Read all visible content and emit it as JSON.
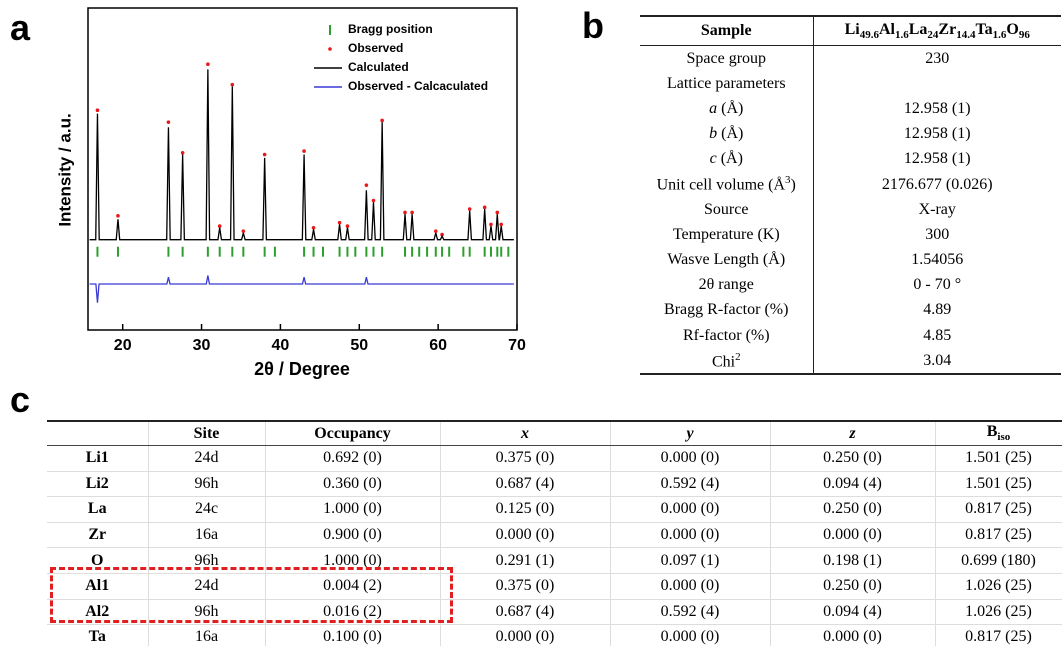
{
  "panel_labels": [
    "a",
    "b",
    "c"
  ],
  "chart_data": {
    "type": "line",
    "xlabel": "2θ / Degree",
    "ylabel": "Intensity / a.u.",
    "xlim": [
      15.6,
      70
    ],
    "ylim": [
      -53,
      136
    ],
    "xticks": [
      20,
      30,
      40,
      50,
      60,
      70
    ],
    "legend": "upper right",
    "series": [
      {
        "name": "Bragg position",
        "mark": "tick",
        "color": "#2ca02c",
        "x": [
          16.8,
          19.4,
          25.8,
          27.6,
          30.8,
          32.3,
          33.9,
          35.3,
          38.0,
          39.3,
          43.0,
          44.2,
          45.4,
          47.5,
          48.5,
          49.5,
          50.9,
          51.8,
          52.9,
          55.8,
          56.7,
          57.6,
          58.6,
          59.7,
          60.5,
          61.4,
          63.2,
          64.0,
          65.9,
          66.7,
          67.5,
          68.0,
          68.9
        ]
      },
      {
        "name": "Observed",
        "mark": "dot",
        "color": "#e8191b",
        "x": [
          16.8,
          19.4,
          25.8,
          27.6,
          30.8,
          32.3,
          33.9,
          35.3,
          38.0,
          43.0,
          44.2,
          47.5,
          48.5,
          50.9,
          51.8,
          52.9,
          55.8,
          56.7,
          59.7,
          60.5,
          64.0,
          65.9,
          66.7,
          67.5,
          68.0
        ],
        "values": [
          76,
          14,
          69,
          51,
          103,
          8,
          91,
          5,
          50,
          52,
          7,
          10,
          8,
          32,
          23,
          70,
          16,
          16,
          5,
          3,
          18,
          19,
          9,
          16,
          9
        ]
      },
      {
        "name": "Calculated",
        "mark": "line",
        "color": "#000000",
        "x": [
          15.8,
          16.58,
          16.8,
          17.02,
          19.18,
          19.4,
          19.62,
          25.58,
          25.8,
          26.02,
          27.38,
          27.6,
          27.82,
          30.58,
          30.8,
          31.02,
          32.08,
          32.3,
          32.52,
          33.68,
          33.9,
          34.12,
          35.08,
          35.3,
          35.52,
          37.78,
          38.0,
          38.22,
          42.78,
          43.0,
          43.22,
          43.98,
          44.2,
          44.42,
          47.28,
          47.5,
          47.72,
          48.28,
          48.5,
          48.72,
          50.68,
          50.9,
          51.12,
          51.58,
          51.8,
          52.02,
          52.68,
          52.9,
          53.12,
          55.58,
          55.8,
          56.02,
          56.48,
          56.7,
          56.92,
          59.48,
          59.7,
          59.92,
          60.28,
          60.5,
          60.72,
          63.78,
          64.0,
          64.22,
          65.68,
          65.9,
          66.12,
          66.48,
          66.7,
          66.92,
          67.28,
          67.5,
          67.72,
          67.78,
          68.0,
          68.22,
          69.6
        ],
        "values": [
          0,
          0,
          74,
          0,
          0,
          12,
          0,
          0,
          66,
          0,
          0,
          50,
          0,
          0,
          100,
          0,
          0,
          7,
          0,
          0,
          90,
          0,
          0,
          4,
          0,
          0,
          48,
          0,
          0,
          50,
          0,
          0,
          6,
          0,
          0,
          9,
          0,
          0,
          7,
          0,
          0,
          29,
          0,
          0,
          22,
          0,
          0,
          69,
          0,
          0,
          15,
          0,
          0,
          15,
          0,
          0,
          4,
          0,
          0,
          2,
          0,
          0,
          17,
          0,
          0,
          18,
          0,
          0,
          8,
          0,
          0,
          15,
          0,
          0,
          8,
          0,
          0
        ]
      },
      {
        "name": "Observed - Calcaculated",
        "mark": "line",
        "color": "#3a3ad6",
        "x": [
          15.8,
          16.6,
          16.8,
          17.0,
          25.6,
          25.8,
          26.0,
          30.6,
          30.8,
          31.0,
          42.8,
          43.0,
          43.2,
          50.7,
          50.9,
          51.1,
          69.6
        ],
        "values": [
          -26,
          -26,
          -37,
          -26,
          -26,
          -22,
          -26,
          -26,
          -21,
          -26,
          -26,
          -22,
          -26,
          -26,
          -22,
          -26,
          -26
        ]
      }
    ]
  },
  "table_b": {
    "header": [
      "Sample",
      [
        {
          "text": "Li"
        },
        {
          "text": "49.6",
          "style": "sub"
        },
        {
          "text": "Al"
        },
        {
          "text": "1.6",
          "style": "sub"
        },
        {
          "text": "La"
        },
        {
          "text": "24",
          "style": "sub"
        },
        {
          "text": "Zr"
        },
        {
          "text": "14.4",
          "style": "sub"
        },
        {
          "text": "Ta"
        },
        {
          "text": "1.6",
          "style": "sub"
        },
        {
          "text": "O"
        },
        {
          "text": "96",
          "style": "sub"
        }
      ]
    ],
    "rows": [
      [
        "Space group",
        "230"
      ],
      [
        "Lattice parameters",
        null
      ],
      [
        [
          {
            "text": "a",
            "style": "italic"
          },
          {
            "text": " (Å)"
          }
        ],
        "12.958 (1)"
      ],
      [
        [
          {
            "text": "b",
            "style": "italic"
          },
          {
            "text": " (Å)"
          }
        ],
        "12.958 (1)"
      ],
      [
        [
          {
            "text": "c",
            "style": "italic"
          },
          {
            "text": " (Å)"
          }
        ],
        "12.958 (1)"
      ],
      [
        [
          {
            "text": "Unit cell volume (Å"
          },
          {
            "text": "3",
            "style": "sup"
          },
          {
            "text": ")"
          }
        ],
        "2176.677 (0.026)"
      ],
      [
        "Source",
        "X-ray"
      ],
      [
        "Temperature (K)",
        "300"
      ],
      [
        "Wasve Length (Å)",
        "1.54056"
      ],
      [
        "2θ range",
        "0 - 70 °"
      ],
      [
        "Bragg R-factor (%)",
        "4.89"
      ],
      [
        "Rf-factor (%)",
        "4.85"
      ],
      [
        [
          {
            "text": "Chi"
          },
          {
            "text": "2",
            "style": "sup"
          }
        ],
        "3.04"
      ]
    ]
  },
  "table_c": {
    "header": [
      null,
      "Site",
      "Occupancy",
      [
        {
          "text": "x",
          "style": "italic"
        }
      ],
      [
        {
          "text": "y",
          "style": "italic"
        }
      ],
      [
        {
          "text": "z",
          "style": "italic"
        }
      ],
      [
        {
          "text": "B"
        },
        {
          "text": "iso",
          "style": "sub"
        }
      ]
    ],
    "rows": [
      [
        "Li1",
        "24d",
        "0.692 (0)",
        "0.375 (0)",
        "0.000 (0)",
        "0.250 (0)",
        "1.501 (25)"
      ],
      [
        "Li2",
        "96h",
        "0.360 (0)",
        "0.687 (4)",
        "0.592 (4)",
        "0.094 (4)",
        "1.501 (25)"
      ],
      [
        "La",
        "24c",
        "1.000 (0)",
        "0.125 (0)",
        "0.000 (0)",
        "0.250 (0)",
        "0.817 (25)"
      ],
      [
        "Zr",
        "16a",
        "0.900 (0)",
        "0.000 (0)",
        "0.000 (0)",
        "0.000 (0)",
        "0.817 (25)"
      ],
      [
        "O",
        "96h",
        "1.000 (0)",
        "0.291 (1)",
        "0.097 (1)",
        "0.198 (1)",
        "0.699 (180)"
      ],
      [
        "Al1",
        "24d",
        "0.004 (2)",
        "0.375 (0)",
        "0.000 (0)",
        "0.250 (0)",
        "1.026 (25)"
      ],
      [
        "Al2",
        "96h",
        "0.016 (2)",
        "0.687 (4)",
        "0.592 (4)",
        "0.094 (4)",
        "1.026 (25)"
      ],
      [
        "Ta",
        "16a",
        "0.100 (0)",
        "0.000 (0)",
        "0.000 (0)",
        "0.000 (0)",
        "0.817 (25)"
      ]
    ]
  }
}
